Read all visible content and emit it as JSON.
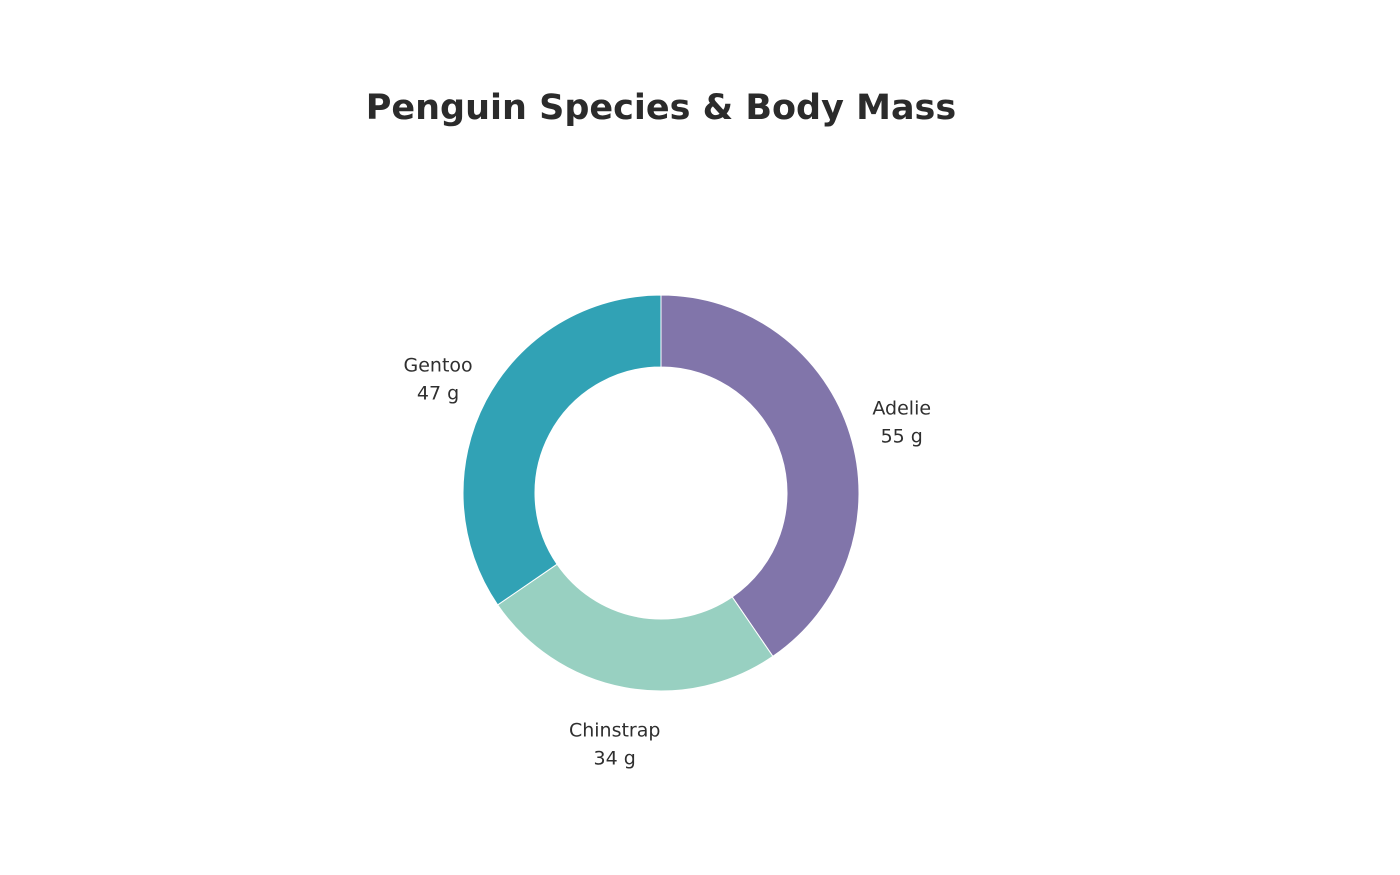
{
  "chart_data": {
    "type": "pie",
    "donut": true,
    "title": "Penguin  Species & Body Mass",
    "unit": "g",
    "slices": [
      {
        "label": "Adelie",
        "value": 55,
        "value_text": "55 g",
        "color": "#8175aa"
      },
      {
        "label": "Chinstrap",
        "value": 34,
        "value_text": "34 g",
        "color": "#98d0c1"
      },
      {
        "label": "Gentoo",
        "value": 47,
        "value_text": "47 g",
        "color": "#31a2b5"
      }
    ],
    "legend": "none",
    "grid": false
  }
}
